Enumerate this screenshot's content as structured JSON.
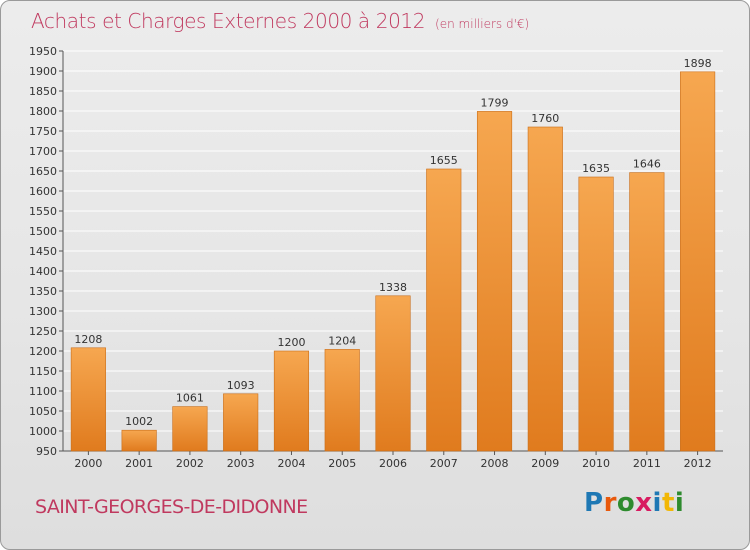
{
  "header": {
    "title": "Achats et Charges Externes 2000 à 2012",
    "unit": "(en milliers d'€)"
  },
  "footer": {
    "commune": "SAINT-GEORGES-DE-DIDONNE",
    "logo_text": "Proxiti",
    "logo_colors": [
      "#1e78b4",
      "#e8590c",
      "#2e8b2e",
      "#d81b60",
      "#1e78b4",
      "#f2b705",
      "#2e8b2e"
    ]
  },
  "colors": {
    "bar_light": "#f6a750",
    "bar_dark": "#e07b1e",
    "title": "#c0395f",
    "grid": "#ffffff",
    "axis": "#555555"
  },
  "chart_data": {
    "type": "bar",
    "title": "Achats et Charges Externes 2000 à 2012",
    "subtitle": "(en milliers d'€)",
    "categories": [
      "2000",
      "2001",
      "2002",
      "2003",
      "2004",
      "2005",
      "2006",
      "2007",
      "2008",
      "2009",
      "2010",
      "2011",
      "2012"
    ],
    "values": [
      1208,
      1002,
      1061,
      1093,
      1200,
      1204,
      1338,
      1655,
      1799,
      1760,
      1635,
      1646,
      1898
    ],
    "ylim": [
      950,
      1950
    ],
    "yticks": [
      950,
      1000,
      1050,
      1100,
      1150,
      1200,
      1250,
      1300,
      1350,
      1400,
      1450,
      1500,
      1550,
      1600,
      1650,
      1700,
      1750,
      1800,
      1850,
      1900,
      1950
    ],
    "grid": true,
    "data_labels": true
  }
}
